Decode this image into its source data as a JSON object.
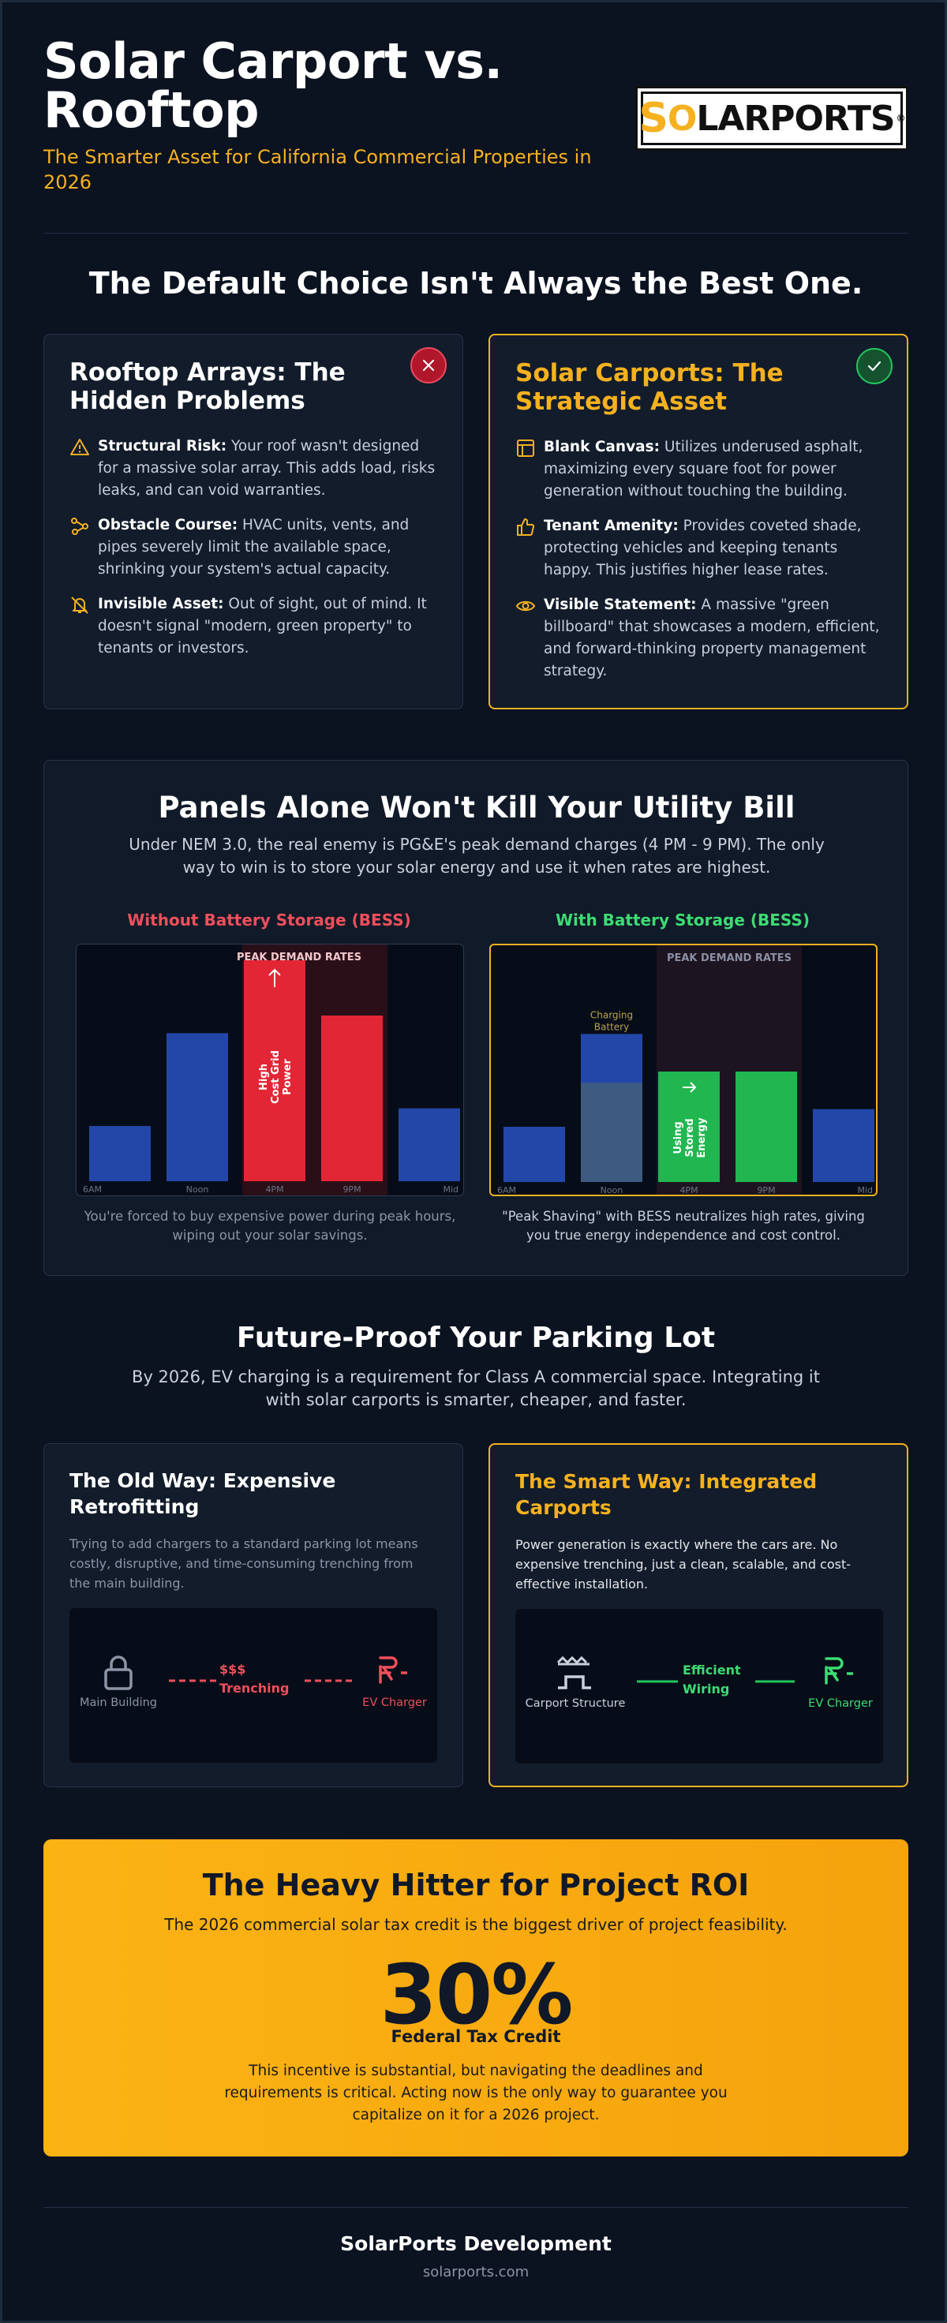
{
  "header": {
    "title": "Solar Carport vs. Rooftop",
    "subtitle": "The Smarter Asset for California Commercial Properties in 2026",
    "logo": {
      "text": "SOLARPORTS",
      "mark": "®",
      "accent": "#f5b120"
    }
  },
  "comparison": {
    "heading": "The Default Choice Isn't Always the Best One.",
    "rooftop": {
      "title": "Rooftop Arrays: The Hidden Problems",
      "badge_icon": "x-icon",
      "items": [
        {
          "icon": "warning-icon",
          "label": "Structural Risk:",
          "text": " Your roof wasn't designed for a massive solar array. This adds load, risks leaks, and can void warranties."
        },
        {
          "icon": "obstacle-icon",
          "label": "Obstacle Course:",
          "text": " HVAC units, vents, and pipes severely limit the available space, shrinking your system's actual capacity."
        },
        {
          "icon": "bell-off-icon",
          "label": "Invisible Asset:",
          "text": " Out of sight, out of mind. It doesn't signal \"modern, green property\" to tenants or investors."
        }
      ]
    },
    "carport": {
      "title": "Solar Carports: The Strategic Asset",
      "badge_icon": "check-icon",
      "items": [
        {
          "icon": "layout-icon",
          "label": "Blank Canvas:",
          "text": " Utilizes underused asphalt, maximizing every square foot for power generation without touching the building."
        },
        {
          "icon": "thumbs-up-icon",
          "label": "Tenant Amenity:",
          "text": " Provides coveted shade, protecting vehicles and keeping tenants happy. This justifies higher lease rates."
        },
        {
          "icon": "eye-icon",
          "label": "Visible Statement:",
          "text": " A massive \"green billboard\" that showcases a modern, efficient, and forward-thinking property management strategy."
        }
      ]
    }
  },
  "battery": {
    "heading": "Panels Alone Won't Kill Your Utility Bill",
    "intro": "Under NEM 3.0, the real enemy is PG&E's peak demand charges (4 PM - 9 PM). The only way to win is to store your solar energy and use it when rates are highest.",
    "without": {
      "label": "Without Battery Storage (BESS)",
      "peak_label": "PEAK DEMAND RATES",
      "bar_text": "High Cost Grid Power",
      "caption": "You're forced to buy expensive power during peak hours, wiping out your solar savings."
    },
    "with": {
      "label": "With Battery Storage (BESS)",
      "peak_label": "PEAK DEMAND RATES",
      "charging_label": "Charging Battery",
      "bar_text": "Using Stored Energy",
      "caption": "\"Peak Shaving\" with BESS neutralizes high rates, giving you true energy independence and cost control."
    },
    "x_ticks": [
      "6AM",
      "Noon",
      "4PM",
      "9PM",
      "Mid"
    ],
    "colors": {
      "base": "#2347a8",
      "peak": "#e32636",
      "stored": "#22b650",
      "charging": "#3d5a80"
    }
  },
  "chart_data": [
    {
      "type": "bar",
      "title": "Without Battery Storage (BESS)",
      "categories": [
        "6AM",
        "Noon",
        "4PM",
        "9PM",
        "Mid"
      ],
      "values": [
        25,
        67,
        100,
        75,
        33
      ],
      "ylim": [
        0,
        100
      ]
    },
    {
      "type": "bar",
      "title": "With Battery Storage (BESS)",
      "categories": [
        "6AM",
        "Noon",
        "4PM",
        "9PM",
        "Mid"
      ],
      "values": [
        25,
        67,
        50,
        50,
        33
      ],
      "ylim": [
        0,
        100
      ]
    }
  ],
  "ev": {
    "heading": "Future-Proof Your Parking Lot",
    "intro": "By 2026, EV charging is a requirement for Class A commercial space. Integrating it with solar carports is smarter, cheaper, and faster.",
    "old": {
      "title": "The Old Way: Expensive Retrofitting",
      "text": "Trying to add chargers to a standard parking lot means costly, disruptive, and time-consuming trenching from the main building.",
      "left_label": "Main Building",
      "mid_label_1": "$$$",
      "mid_label_2": "Trenching",
      "right_label": "EV Charger"
    },
    "smart": {
      "title": "The Smart Way: Integrated Carports",
      "text": "Power generation is exactly where the cars are. No expensive trenching, just a clean, scalable, and cost-effective installation.",
      "left_label": "Carport Structure",
      "mid_label_1": "Efficient",
      "mid_label_2": "Wiring",
      "right_label": "EV Charger"
    }
  },
  "roi": {
    "heading": "The Heavy Hitter for Project ROI",
    "subheading": "The 2026 commercial solar tax credit is the biggest driver of project feasibility.",
    "value": "30%",
    "value_label": "Federal Tax Credit",
    "text": "This incentive is substantial, but navigating the deadlines and requirements is critical. Acting now is the only way to guarantee you capitalize on it for a 2026 project."
  },
  "footer": {
    "company": "SolarPorts Development",
    "url": "solarports.com"
  }
}
